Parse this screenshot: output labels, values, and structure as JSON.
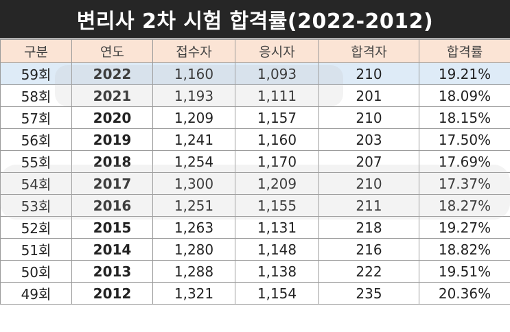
{
  "title": "변리사 2차 시험 합격률(2022-2012)",
  "colors": {
    "title_bg": "#262626",
    "header_bg": "#fbe4d5",
    "highlight_row_bg": "#deebf7"
  },
  "headers": [
    "구분",
    "연도",
    "접수자",
    "응시자",
    "합격자",
    "합격률"
  ],
  "rows": [
    [
      "59회",
      "2022",
      "1,160",
      "1,093",
      "210",
      "19.21%"
    ],
    [
      "58회",
      "2021",
      "1,193",
      "1,111",
      "201",
      "18.09%"
    ],
    [
      "57회",
      "2020",
      "1,209",
      "1,157",
      "210",
      "18.15%"
    ],
    [
      "56회",
      "2019",
      "1,241",
      "1,160",
      "203",
      "17.50%"
    ],
    [
      "55회",
      "2018",
      "1,254",
      "1,170",
      "207",
      "17.69%"
    ],
    [
      "54회",
      "2017",
      "1,300",
      "1,209",
      "210",
      "17.37%"
    ],
    [
      "53회",
      "2016",
      "1,251",
      "1,155",
      "211",
      "18.27%"
    ],
    [
      "52회",
      "2015",
      "1,263",
      "1,131",
      "218",
      "19.27%"
    ],
    [
      "51회",
      "2014",
      "1,280",
      "1,148",
      "216",
      "18.82%"
    ],
    [
      "50회",
      "2013",
      "1,288",
      "1,138",
      "222",
      "19.51%"
    ],
    [
      "49회",
      "2012",
      "1,321",
      "1,154",
      "235",
      "20.36%"
    ]
  ]
}
